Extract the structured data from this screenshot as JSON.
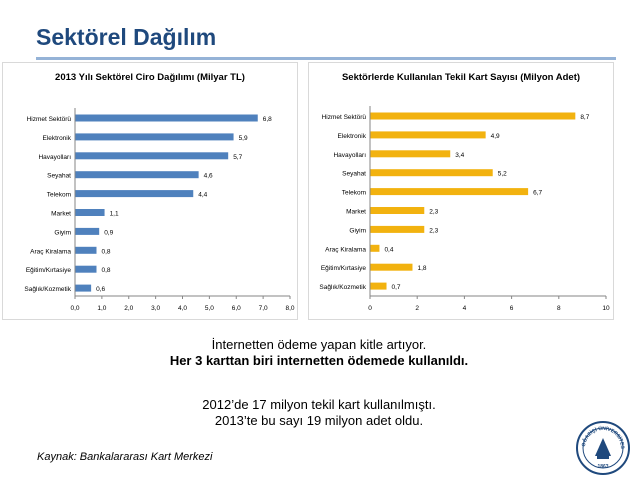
{
  "page": {
    "title": "Sektörel Dağılım"
  },
  "chart_data": [
    {
      "type": "bar",
      "orientation": "horizontal",
      "title": "2013 Yılı Sektörel Ciro Dağılımı (Milyar TL)",
      "categories": [
        "Hizmet Sektörü",
        "Elektronik",
        "Havayolları",
        "Seyahat",
        "Telekom",
        "Market",
        "Giyim",
        "Araç Kiralama",
        "Eğitim/Kırtasiye",
        "Sağlık/Kozmetik"
      ],
      "values": [
        6.8,
        5.9,
        5.7,
        4.6,
        4.4,
        1.1,
        0.9,
        0.8,
        0.8,
        0.6
      ],
      "value_labels": [
        "6,8",
        "5,9",
        "5,7",
        "4,6",
        "4,4",
        "1,1",
        "0,9",
        "0,8",
        "0,8",
        "0,6"
      ],
      "xlim": [
        0,
        8
      ],
      "ticks": [
        0,
        1,
        2,
        3,
        4,
        5,
        6,
        7,
        8
      ],
      "tick_labels": [
        "0,0",
        "1,0",
        "2,0",
        "3,0",
        "4,0",
        "5,0",
        "6,0",
        "7,0",
        "8,0"
      ],
      "color": "#4f81bd",
      "grid": false
    },
    {
      "type": "bar",
      "orientation": "horizontal",
      "title": "Sektörlerde Kullanılan Tekil Kart Sayısı (Milyon Adet)",
      "categories": [
        "Hizmet Sektörü",
        "Elektronik",
        "Havayolları",
        "Seyahat",
        "Telekom",
        "Market",
        "Giyim",
        "Araç Kiralama",
        "Eğitim/Kırtasiye",
        "Sağlık/Kozmetik"
      ],
      "values": [
        8.7,
        4.9,
        3.4,
        5.2,
        6.7,
        2.3,
        2.3,
        0.4,
        1.8,
        0.7
      ],
      "value_labels": [
        "8,7",
        "4,9",
        "3,4",
        "5,2",
        "6,7",
        "2,3",
        "2,3",
        "0,4",
        "1,8",
        "0,7"
      ],
      "xlim": [
        0,
        10
      ],
      "ticks": [
        0,
        2,
        4,
        6,
        8,
        10
      ],
      "tick_labels": [
        "0",
        "2",
        "4",
        "6",
        "8",
        "10"
      ],
      "color": "#f2b20f",
      "grid": false
    }
  ],
  "message": {
    "line1": "İnternetten ödeme yapan kitle artıyor.",
    "line2": "Her 3 karttan biri internetten ödemede kullanıldı.",
    "line3": "2012’de 17 milyon tekil kart kullanılmıştı.",
    "line4": "2013’te bu sayı 19 milyon adet oldu."
  },
  "source": "Kaynak: Bankalararası Kart Merkezi",
  "seal": {
    "text": "BOĞAZİÇİ ÜNİVERSİTESİ",
    "year": "1863",
    "color": "#1f497d"
  }
}
